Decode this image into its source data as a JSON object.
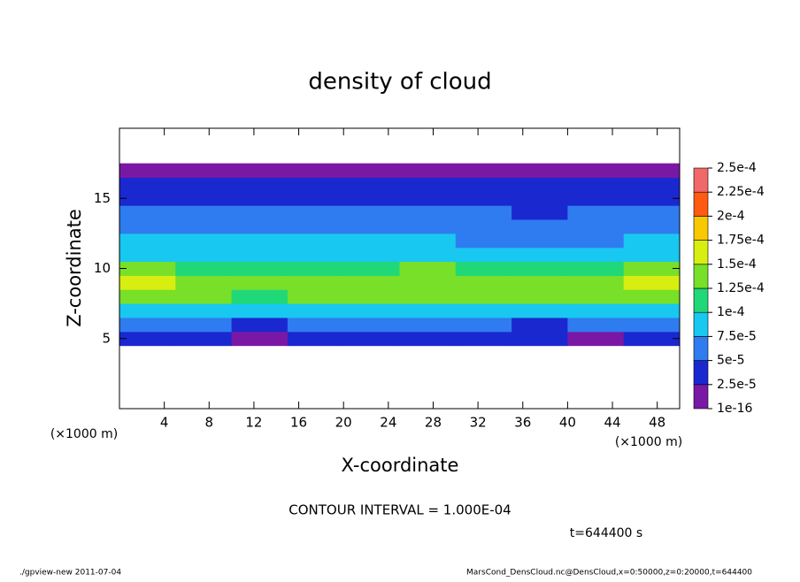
{
  "chart_data": {
    "type": "contour",
    "title": "density of cloud",
    "xlabel": "X-coordinate",
    "ylabel": "Z-coordinate",
    "x_unit_left": "(×1000 m)",
    "x_unit_right": "(×1000 m)",
    "x": [
      2.5,
      7.5,
      12.5,
      17.5,
      22.5,
      27.5,
      32.5,
      37.5,
      42.5,
      47.5
    ],
    "y": [
      5,
      6,
      7,
      8,
      9,
      10,
      11,
      12,
      13,
      14,
      15,
      16,
      17
    ],
    "values": [
      [
        3e-05,
        3e-05,
        1e-05,
        3e-05,
        3e-05,
        3e-05,
        3e-05,
        3e-05,
        1e-05,
        3e-05
      ],
      [
        6e-05,
        6e-05,
        4e-05,
        5e-05,
        6e-05,
        6e-05,
        6e-05,
        4e-05,
        5e-05,
        6e-05
      ],
      [
        9e-05,
        9e-05,
        8e-05,
        9e-05,
        9e-05,
        9e-05,
        9e-05,
        8e-05,
        9e-05,
        9e-05
      ],
      [
        0.00014,
        0.000135,
        0.00012,
        0.000125,
        0.00013,
        0.00013,
        0.000135,
        0.00013,
        0.00013,
        0.000135
      ],
      [
        0.00016,
        0.000145,
        0.000135,
        0.00014,
        0.00014,
        0.000145,
        0.000145,
        0.00014,
        0.00014,
        0.00015
      ],
      [
        0.00013,
        0.00012,
        0.000115,
        0.00012,
        0.00012,
        0.000125,
        0.00012,
        0.000115,
        0.00012,
        0.000125
      ],
      [
        9e-05,
        8.5e-05,
        8e-05,
        8.5e-05,
        8.5e-05,
        9e-05,
        8.5e-05,
        7.5e-05,
        8e-05,
        9e-05
      ],
      [
        8e-05,
        7.5e-05,
        7.5e-05,
        8e-05,
        8e-05,
        7.5e-05,
        6.5e-05,
        5.5e-05,
        7e-05,
        8e-05
      ],
      [
        7e-05,
        7e-05,
        7e-05,
        7e-05,
        7e-05,
        6.5e-05,
        5.5e-05,
        5e-05,
        6e-05,
        7e-05
      ],
      [
        6e-05,
        6e-05,
        6e-05,
        6e-05,
        6e-05,
        5.5e-05,
        5e-05,
        4.5e-05,
        5.5e-05,
        6e-05
      ],
      [
        4.5e-05,
        4.5e-05,
        4.5e-05,
        4.5e-05,
        4.5e-05,
        4.5e-05,
        4e-05,
        4e-05,
        4.5e-05,
        4.5e-05
      ],
      [
        3e-05,
        3e-05,
        3e-05,
        3e-05,
        3e-05,
        3e-05,
        3e-05,
        3e-05,
        3e-05,
        3e-05
      ],
      [
        1e-05,
        1e-05,
        1e-05,
        1e-05,
        1e-05,
        1e-05,
        1e-05,
        1e-05,
        1e-05,
        1e-05
      ]
    ],
    "xlim": [
      0,
      50
    ],
    "ylim": [
      0,
      20
    ],
    "xticks": [
      4,
      8,
      12,
      16,
      20,
      24,
      28,
      32,
      36,
      40,
      44,
      48
    ],
    "yticks": [
      5,
      10,
      15
    ],
    "colorbar": {
      "ticks": [
        1e-16,
        {
          "value": 2.5e-05,
          "label": "2.5e-5"
        },
        {
          "value": 5e-05,
          "label": "5e-5"
        },
        {
          "value": 7.5e-05,
          "label": "7.5e-5"
        },
        {
          "value": 0.0001,
          "label": "1e-4"
        },
        {
          "value": 0.000125,
          "label": "1.25e-4"
        },
        {
          "value": 0.00015,
          "label": "1.5e-4"
        },
        {
          "value": 0.000175,
          "label": "1.75e-4"
        },
        {
          "value": 0.0002,
          "label": "2e-4"
        },
        {
          "value": 0.000225,
          "label": "2.25e-4"
        },
        {
          "value": 0.00025,
          "label": "2.5e-4"
        }
      ],
      "colors": [
        "#7a18a6",
        "#1a28d0",
        "#2f7cf0",
        "#18c8f0",
        "#20d878",
        "#78e028",
        "#d8ee10",
        "#f8c800",
        "#ff5a10",
        "#f06868"
      ]
    },
    "contour_interval": "CONTOUR INTERVAL = 1.000E-04",
    "time": "t=644400 s",
    "footer_left": "./gpview-new  2011-07-04",
    "footer_right": "MarsCond_DensCloud.nc@DensCloud,x=0:50000,z=0:20000,t=644400"
  }
}
